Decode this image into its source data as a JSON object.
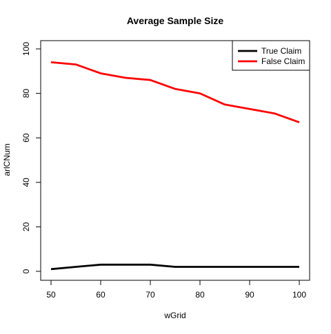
{
  "chart_data": {
    "type": "line",
    "title": "Average Sample Size",
    "xlabel": "wGrid",
    "ylabel": "arlCNum",
    "x": [
      50,
      55,
      60,
      65,
      70,
      75,
      80,
      85,
      90,
      95,
      100
    ],
    "xlim": [
      50,
      100
    ],
    "ylim": [
      0,
      100
    ],
    "xticks": [
      50,
      60,
      70,
      80,
      90,
      100
    ],
    "yticks": [
      0,
      20,
      40,
      60,
      80,
      100
    ],
    "grid": false,
    "legend_position": "top-right",
    "series": [
      {
        "name": "True Claim",
        "color": "#000000",
        "values": [
          1,
          2,
          3,
          3,
          3,
          2,
          2,
          2,
          2,
          2,
          2
        ]
      },
      {
        "name": "False Claim",
        "color": "#ff0000",
        "values": [
          94,
          93,
          89,
          87,
          86,
          82,
          80,
          75,
          73,
          71,
          67
        ]
      }
    ]
  }
}
